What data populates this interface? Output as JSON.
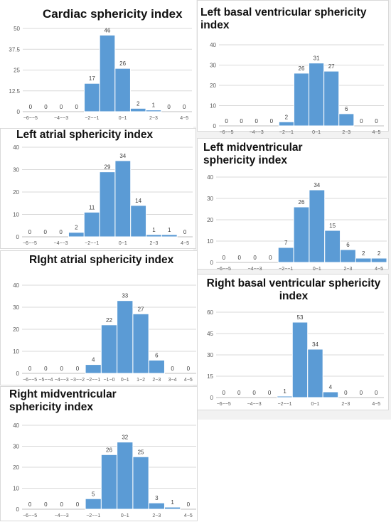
{
  "chart_data": [
    {
      "type": "bar",
      "title": "Cardiac sphericity index",
      "categories": [
        "-6--5",
        "-5--4",
        "-4--3",
        "-3--2",
        "-2--1",
        "-1-0",
        "0-1",
        "1-2",
        "2-3",
        "3-4",
        "4-5"
      ],
      "tick_labels": [
        "-6--5",
        "",
        "-4--3",
        "",
        "-2--1",
        "",
        "0-1",
        "",
        "2-3",
        "",
        "4-5"
      ],
      "values": [
        0,
        0,
        0,
        0,
        17,
        46,
        26,
        2,
        1,
        0,
        0
      ],
      "data_labels": [
        "0",
        "0",
        "0",
        "0",
        "17",
        "46",
        "26",
        "2",
        "1",
        "0",
        "0"
      ],
      "ylim": [
        0,
        50
      ],
      "yticks": [
        0,
        12.5,
        25,
        37.5,
        50
      ],
      "ytick_labels": [
        "0",
        "12.5",
        "25",
        "37.5",
        "50"
      ],
      "grid": true
    },
    {
      "type": "bar",
      "title": "Left basal ventricular sphericity index",
      "categories": [
        "-6--5",
        "-5--4",
        "-4--3",
        "-3--2",
        "-2--1",
        "-1-0",
        "0-1",
        "1-2",
        "2-3",
        "3-4",
        "4-5"
      ],
      "tick_labels": [
        "-6--5",
        "",
        "-4--3",
        "",
        "-2--1",
        "",
        "0-1",
        "",
        "2-3",
        "",
        "4-5"
      ],
      "values": [
        0,
        0,
        0,
        0,
        2,
        26,
        31,
        27,
        6,
        0,
        0
      ],
      "data_labels": [
        "0",
        "0",
        "0",
        "0",
        "2",
        "26",
        "31",
        "27",
        "6",
        "0",
        "0"
      ],
      "ylim": [
        0,
        40
      ],
      "yticks": [
        0,
        10,
        20,
        30,
        40
      ],
      "ytick_labels": [
        "0",
        "10",
        "20",
        "30",
        "40"
      ],
      "grid": true
    },
    {
      "type": "bar",
      "title": "Left atrial sphericity index",
      "categories": [
        "-6--5",
        "-5--4",
        "-4--3",
        "-3--2",
        "-2--1",
        "-1-0",
        "0-1",
        "1-2",
        "2-3",
        "3-4",
        "4-5"
      ],
      "tick_labels": [
        "-6--5",
        "",
        "-4--3",
        "",
        "-2--1",
        "",
        "0-1",
        "",
        "2-3",
        "",
        "4-5"
      ],
      "values": [
        0,
        0,
        0,
        2,
        11,
        29,
        34,
        14,
        1,
        1,
        0
      ],
      "data_labels": [
        "0",
        "0",
        "0",
        "2",
        "11",
        "29",
        "34",
        "14",
        "1",
        "1",
        "0"
      ],
      "ylim": [
        0,
        40
      ],
      "yticks": [
        0,
        10,
        20,
        30,
        40
      ],
      "ytick_labels": [
        "0",
        "10",
        "20",
        "30",
        "40"
      ],
      "grid": true
    },
    {
      "type": "bar",
      "title": "Left midventricular sphericity index",
      "categories": [
        "-6--5",
        "-5--4",
        "-4--3",
        "-3--2",
        "-2--1",
        "-1-0",
        "0-1",
        "1-2",
        "2-3",
        "3-4",
        "4-5"
      ],
      "tick_labels": [
        "-6--5",
        "",
        "-4--3",
        "",
        "-2--1",
        "",
        "0-1",
        "",
        "2-3",
        "",
        "4-5"
      ],
      "values": [
        0,
        0,
        0,
        0,
        7,
        26,
        34,
        15,
        6,
        2,
        2
      ],
      "data_labels": [
        "0",
        "0",
        "0",
        "0",
        "7",
        "26",
        "34",
        "15",
        "6",
        "2",
        "2"
      ],
      "ylim": [
        0,
        40
      ],
      "yticks": [
        0,
        10,
        20,
        30,
        40
      ],
      "ytick_labels": [
        "0",
        "10",
        "20",
        "30",
        "40"
      ],
      "grid": true
    },
    {
      "type": "bar",
      "title": "RIght atrial sphericity index",
      "categories": [
        "-6--5",
        "-5--4",
        "-4--3",
        "-3--2",
        "-2--1",
        "-1-0",
        "0-1",
        "1-2",
        "2-3",
        "3-4",
        "4-5"
      ],
      "tick_labels": [
        "-6--5",
        "-5--4",
        "-4--3",
        "-3--2",
        "-2--1",
        "-1-0",
        "0-1",
        "1-2",
        "2-3",
        "3-4",
        "4-5"
      ],
      "values": [
        0,
        0,
        0,
        0,
        4,
        22,
        33,
        27,
        6,
        0,
        0
      ],
      "data_labels": [
        "0",
        "0",
        "0",
        "0",
        "4",
        "22",
        "33",
        "27",
        "6",
        "0",
        "0"
      ],
      "ylim": [
        0,
        40
      ],
      "yticks": [
        0,
        10,
        20,
        30,
        40
      ],
      "ytick_labels": [
        "0",
        "10",
        "20",
        "30",
        "40"
      ],
      "grid": true
    },
    {
      "type": "bar",
      "title": "Right basal ventricular sphericity index",
      "categories": [
        "-6--5",
        "-5--4",
        "-4--3",
        "-3--2",
        "-2--1",
        "-1-0",
        "0-1",
        "1-2",
        "2-3",
        "3-4",
        "4-5"
      ],
      "tick_labels": [
        "-6--5",
        "",
        "-4--3",
        "",
        "-2--1",
        "",
        "0-1",
        "",
        "2-3",
        "",
        "4-5"
      ],
      "values": [
        0,
        0,
        0,
        0,
        1,
        53,
        34,
        4,
        0,
        0,
        0
      ],
      "data_labels": [
        "0",
        "0",
        "0",
        "0",
        "1",
        "53",
        "34",
        "4",
        "0",
        "0",
        "0"
      ],
      "ylim": [
        0,
        60
      ],
      "yticks": [
        0,
        15,
        30,
        45,
        60
      ],
      "ytick_labels": [
        "0",
        "15",
        "30",
        "45",
        "60"
      ],
      "grid": true
    },
    {
      "type": "bar",
      "title": "Right midventricular sphericity index",
      "categories": [
        "-6--5",
        "-5--4",
        "-4--3",
        "-3--2",
        "-2--1",
        "-1-0",
        "0-1",
        "1-2",
        "2-3",
        "3-4",
        "4-5"
      ],
      "tick_labels": [
        "-6--5",
        "",
        "-4--3",
        "",
        "-2--1",
        "",
        "0-1",
        "",
        "2-3",
        "",
        "4-5"
      ],
      "values": [
        0,
        0,
        0,
        0,
        5,
        26,
        32,
        25,
        3,
        1,
        0
      ],
      "data_labels": [
        "0",
        "0",
        "0",
        "0",
        "5",
        "26",
        "32",
        "25",
        "3",
        "1",
        "0"
      ],
      "ylim": [
        0,
        40
      ],
      "yticks": [
        0,
        10,
        20,
        30,
        40
      ],
      "ytick_labels": [
        "0",
        "10",
        "20",
        "30",
        "40"
      ],
      "grid": true
    }
  ],
  "colors": {
    "bar": "#5b9bd5",
    "grid": "#d9d9d9",
    "text": "#595959"
  }
}
